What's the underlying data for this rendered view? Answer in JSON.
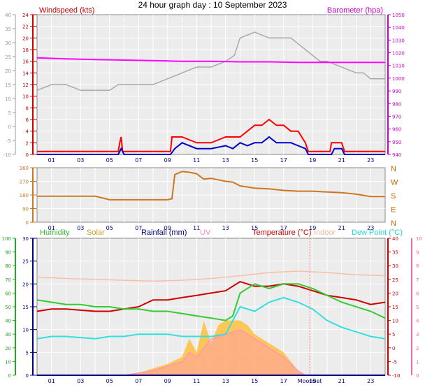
{
  "title": "24 hour graph day : 10 September 2023",
  "colors": {
    "wind_speed": "#ff0000",
    "wind_avg": "#0000cc",
    "barometer": "#ff00ff",
    "gust": "#aaaaaa",
    "direction": "#cc7722",
    "humidity": "#33cc33",
    "solar": "#ffc040",
    "rainfall": "#000080",
    "uv": "#ff88cc",
    "temperature": "#cc0000",
    "indoor": "#f5c0a8",
    "dew_point": "#33e0e0",
    "grid": "#ffffff",
    "panel_bg": "#ececec"
  },
  "hours": [
    "01",
    "03",
    "05",
    "07",
    "09",
    "11",
    "13",
    "15",
    "17",
    "19",
    "21",
    "23"
  ],
  "moonset_label": "MoonSet",
  "chart_data": [
    {
      "type": "line",
      "name": "wind_and_pressure",
      "labels": {
        "left": "Windspeed (kts)",
        "right": "Barometer (hpa)"
      },
      "left_ticks": [
        "24",
        "22",
        "20",
        "18",
        "16",
        "14",
        "12",
        "10",
        "8",
        "6",
        "4",
        "2",
        "0"
      ],
      "outer_left_ticks": [
        "40",
        "35",
        "30",
        "25",
        "20",
        "15",
        "10",
        "5",
        "0",
        "-5",
        "-10"
      ],
      "right_ticks": [
        "1050",
        "1040",
        "1030",
        "1020",
        "1010",
        "1000",
        "990",
        "980",
        "970",
        "960",
        "950",
        "940"
      ],
      "xlim": [
        0,
        24
      ],
      "ylim": [
        0,
        24
      ],
      "series": [
        {
          "key": "gust",
          "color": "gust",
          "x": [
            0,
            1,
            1.5,
            2,
            3,
            4,
            5,
            5.6,
            6,
            7,
            8,
            9,
            10,
            11,
            12,
            13,
            13.6,
            14,
            15,
            16,
            16.5,
            17,
            17.5,
            18,
            18.5,
            19,
            19.5,
            20,
            21,
            22,
            22.5,
            23,
            24
          ],
          "y": [
            11,
            12,
            12,
            12,
            11,
            11,
            11,
            12,
            12,
            12,
            12,
            13,
            14,
            15,
            15,
            16,
            17,
            20,
            21,
            20,
            20,
            20,
            20,
            19,
            18,
            17,
            16,
            16,
            15,
            14,
            14,
            13,
            13
          ]
        },
        {
          "key": "barometer",
          "color": "barometer",
          "x": [
            0,
            2,
            4,
            6,
            8,
            10,
            12,
            14,
            16,
            18,
            20,
            22,
            24
          ],
          "y": [
            16.6,
            16.4,
            16.3,
            16.2,
            16.1,
            16.0,
            16.0,
            15.9,
            15.9,
            15.8,
            15.8,
            15.8,
            15.8
          ]
        },
        {
          "key": "wind_speed",
          "color": "wind_speed",
          "x": [
            0,
            5.6,
            5.7,
            5.8,
            5.9,
            9.2,
            9.3,
            10,
            11,
            12,
            13,
            13.5,
            14,
            14.5,
            15,
            15.5,
            16,
            16.5,
            17,
            17.5,
            18,
            18.5,
            18.7,
            19,
            20.2,
            20.3,
            21,
            21.2,
            24
          ],
          "y": [
            0.5,
            0.5,
            2,
            3,
            0.5,
            0.5,
            3,
            3,
            2,
            2,
            3,
            3,
            3,
            4,
            5,
            5,
            6,
            5,
            5,
            4,
            4,
            2,
            0.5,
            0.5,
            0.5,
            2,
            2,
            0.5,
            0.5
          ]
        },
        {
          "key": "wind_avg",
          "color": "wind_avg",
          "x": [
            0,
            5.6,
            5.8,
            6,
            9.2,
            9.5,
            10,
            11,
            12,
            13,
            13.5,
            14,
            14.5,
            15,
            15.5,
            16,
            16.5,
            17,
            17.5,
            18,
            18.5,
            18.7,
            20.3,
            20.5,
            21,
            21.2,
            24
          ],
          "y": [
            0,
            0,
            1,
            0,
            0,
            1,
            2,
            1,
            1,
            1.5,
            1,
            2,
            1.5,
            2,
            2,
            3,
            2,
            2,
            2,
            1.5,
            1,
            0,
            0,
            1,
            1,
            0,
            0
          ]
        }
      ]
    },
    {
      "type": "line",
      "name": "wind_direction",
      "left_ticks": [
        "360",
        "270",
        "180",
        "90",
        "0"
      ],
      "right_labels": [
        "N",
        "W",
        "S",
        "E",
        "N"
      ],
      "xlim": [
        0,
        24
      ],
      "ylim": [
        0,
        360
      ],
      "series": [
        {
          "key": "direction",
          "color": "direction",
          "x": [
            0,
            4,
            5,
            7,
            8,
            9,
            9.3,
            9.5,
            10,
            10.5,
            11,
            11.5,
            12,
            12.5,
            13,
            13.5,
            14,
            15,
            16,
            17,
            18,
            19,
            20,
            21,
            22,
            23,
            24
          ],
          "y": [
            172,
            172,
            148,
            148,
            148,
            148,
            155,
            315,
            335,
            330,
            320,
            285,
            290,
            280,
            270,
            265,
            240,
            225,
            220,
            210,
            205,
            205,
            200,
            195,
            185,
            170,
            170
          ]
        }
      ]
    },
    {
      "type": "area",
      "name": "environment",
      "labels": [
        "Humidity",
        "Solar",
        "Rainfall (mm)",
        "UV",
        "Temperature (°C)",
        "Indoor",
        "Dew Point (°C)"
      ],
      "left_ticks": [
        "30",
        "25",
        "20",
        "15",
        "10",
        "5",
        "0"
      ],
      "outer_left_ticks": [
        "100",
        "90",
        "80",
        "70",
        "60",
        "50",
        "40",
        "30",
        "20",
        "10",
        "0"
      ],
      "right_ticks": [
        "40",
        "35",
        "30",
        "25",
        "20",
        "15",
        "10",
        "5",
        "0",
        "-5",
        "-10"
      ],
      "outer_right_ticks": [
        "10",
        "9",
        "8",
        "7",
        "6",
        "5",
        "4",
        "3",
        "2",
        "1",
        "0"
      ],
      "xlim": [
        0,
        24
      ],
      "ylim": [
        0,
        30
      ],
      "series": [
        {
          "key": "solar",
          "color": "solar",
          "x": [
            0,
            6,
            7,
            8,
            9,
            10,
            10.5,
            11,
            11.5,
            12,
            12.5,
            13,
            13.5,
            14,
            14.5,
            15,
            16,
            17,
            18,
            18.5,
            24
          ],
          "y": [
            0,
            0,
            0.5,
            1.5,
            2.5,
            4,
            8,
            5,
            12,
            7,
            11,
            12,
            12,
            12,
            11,
            9,
            7,
            5,
            1,
            0,
            0
          ]
        },
        {
          "key": "uv",
          "color": "uv",
          "x": [
            0,
            6,
            7,
            8,
            9,
            10,
            10.5,
            11,
            12,
            13,
            14,
            15,
            16,
            17,
            18,
            18.5,
            24
          ],
          "y": [
            0,
            0,
            0.5,
            1,
            2,
            3,
            5,
            4,
            8,
            9,
            10,
            8,
            6,
            4,
            1,
            0,
            0
          ]
        },
        {
          "key": "indoor",
          "color": "indoor",
          "x": [
            0,
            2,
            4,
            6,
            8,
            10,
            12,
            14,
            16,
            18,
            20,
            22,
            24
          ],
          "y": [
            21.5,
            21.2,
            21,
            20.8,
            20.6,
            20.8,
            21.2,
            21.8,
            22.5,
            22.8,
            22.5,
            22,
            21.8
          ]
        },
        {
          "key": "temperature",
          "color": "temperature",
          "x": [
            0,
            1,
            2,
            4,
            5,
            6,
            7,
            8,
            9,
            10,
            11,
            12,
            13,
            14,
            15,
            16,
            17,
            18,
            19,
            20,
            21,
            22,
            23,
            24
          ],
          "y": [
            14,
            14.5,
            14.5,
            14,
            14,
            14.5,
            15,
            16.5,
            16.5,
            17,
            17.5,
            18,
            18.5,
            20.5,
            19.5,
            19.5,
            20,
            19.5,
            18.5,
            17.5,
            17,
            16.5,
            15.5,
            16
          ]
        },
        {
          "key": "humidity",
          "color": "humidity",
          "x": [
            0,
            1,
            2,
            3,
            4,
            5,
            6,
            7,
            8,
            9,
            10,
            11,
            12,
            13,
            13.5,
            14,
            15,
            16,
            17,
            18,
            19,
            20,
            21,
            22,
            23,
            24
          ],
          "y": [
            16.5,
            16,
            15.5,
            15.5,
            15,
            15,
            14.5,
            14.5,
            14,
            14,
            13.5,
            13,
            12.5,
            12,
            13,
            18,
            20,
            19,
            20,
            20,
            19,
            17.5,
            16,
            15,
            14,
            12.5
          ]
        },
        {
          "key": "dew_point",
          "color": "dew_point",
          "x": [
            0,
            1,
            2,
            4,
            5,
            6,
            7,
            8,
            9,
            10,
            11,
            12,
            13,
            14,
            15,
            16,
            17,
            18,
            19,
            20,
            21,
            22,
            23,
            24
          ],
          "y": [
            8,
            8.5,
            8.5,
            8,
            8.5,
            8.5,
            9,
            9,
            9,
            8.5,
            8.5,
            8.5,
            9,
            15,
            14,
            16,
            17,
            16,
            14.5,
            12,
            10.5,
            9.5,
            8.5,
            8
          ]
        },
        {
          "key": "rainfall",
          "color": "rainfall",
          "x": [
            0,
            24
          ],
          "y": [
            0,
            0
          ]
        }
      ]
    }
  ]
}
